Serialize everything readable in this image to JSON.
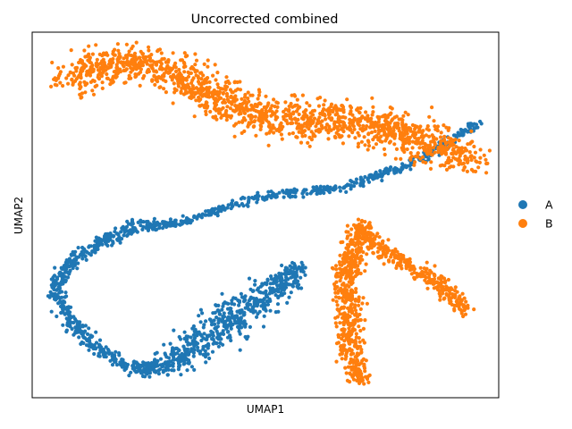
{
  "chart_data": {
    "type": "scatter",
    "title": "Uncorrected combined",
    "xlabel": "UMAP1",
    "ylabel": "UMAP2",
    "grid": false,
    "ticks": false,
    "legend_position": "right",
    "series": [
      {
        "name": "A",
        "color": "#1f77b4",
        "trajectory": [
          [
            0.3,
            0.47
          ],
          [
            0.41,
            0.52
          ],
          [
            0.49,
            0.55
          ],
          [
            0.56,
            0.56
          ],
          [
            0.65,
            0.57
          ],
          [
            0.72,
            0.6
          ],
          [
            0.8,
            0.63
          ],
          [
            0.87,
            0.68
          ],
          [
            0.93,
            0.73
          ],
          [
            0.96,
            0.75
          ]
        ],
        "loop_outer": [
          [
            0.3,
            0.47
          ],
          [
            0.22,
            0.47
          ],
          [
            0.16,
            0.43
          ],
          [
            0.1,
            0.39
          ],
          [
            0.06,
            0.33
          ],
          [
            0.05,
            0.29
          ],
          [
            0.07,
            0.24
          ],
          [
            0.1,
            0.18
          ],
          [
            0.15,
            0.13
          ],
          [
            0.2,
            0.09
          ],
          [
            0.24,
            0.08
          ]
        ],
        "loop_inner": [
          [
            0.24,
            0.08
          ],
          [
            0.3,
            0.1
          ],
          [
            0.36,
            0.15
          ],
          [
            0.42,
            0.21
          ],
          [
            0.49,
            0.27
          ],
          [
            0.54,
            0.32
          ],
          [
            0.57,
            0.36
          ]
        ]
      },
      {
        "name": "B",
        "color": "#ff7f0e",
        "upper_cluster": [
          [
            0.08,
            0.87
          ],
          [
            0.14,
            0.91
          ],
          [
            0.22,
            0.92
          ],
          [
            0.3,
            0.9
          ],
          [
            0.38,
            0.84
          ],
          [
            0.46,
            0.78
          ],
          [
            0.56,
            0.76
          ],
          [
            0.66,
            0.76
          ],
          [
            0.76,
            0.74
          ],
          [
            0.84,
            0.7
          ],
          [
            0.9,
            0.68
          ],
          [
            0.95,
            0.65
          ]
        ],
        "lower_arms": [
          [
            0.7,
            0.47
          ],
          [
            0.69,
            0.4
          ],
          [
            0.67,
            0.33
          ],
          [
            0.68,
            0.25
          ],
          [
            0.68,
            0.18
          ],
          [
            0.69,
            0.1
          ],
          [
            0.7,
            0.05
          ]
        ],
        "right_arm": [
          [
            0.7,
            0.47
          ],
          [
            0.75,
            0.4
          ],
          [
            0.8,
            0.37
          ],
          [
            0.86,
            0.32
          ],
          [
            0.9,
            0.28
          ],
          [
            0.93,
            0.24
          ]
        ]
      }
    ],
    "legend": [
      {
        "label": "A",
        "color": "#1f77b4"
      },
      {
        "label": "B",
        "color": "#ff7f0e"
      }
    ]
  }
}
